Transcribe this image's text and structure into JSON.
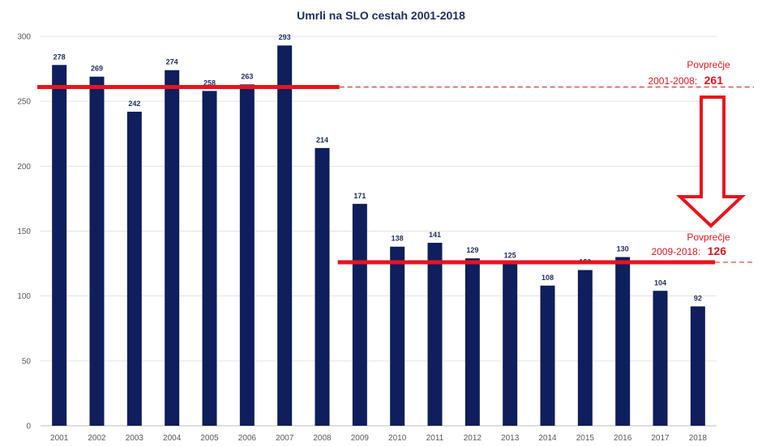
{
  "chart_data": {
    "type": "bar",
    "title": "Umrli na SLO cestah 2001-2018",
    "categories": [
      "2001",
      "2002",
      "2003",
      "2004",
      "2005",
      "2006",
      "2007",
      "2008",
      "2009",
      "2010",
      "2011",
      "2012",
      "2013",
      "2014",
      "2015",
      "2016",
      "2017",
      "2018"
    ],
    "values": [
      278,
      269,
      242,
      274,
      258,
      263,
      293,
      214,
      171,
      138,
      141,
      129,
      125,
      108,
      120,
      130,
      104,
      92
    ],
    "ylim": [
      0,
      300
    ],
    "yticks": [
      0,
      50,
      100,
      150,
      200,
      250,
      300
    ],
    "grid": true,
    "colors": {
      "bar": "#0f1e5c",
      "average": "#e8141c",
      "text": "#1f2d5c"
    },
    "averages": [
      {
        "label": "Povprečje",
        "period": "2001-2008:",
        "value": 261,
        "from": "2001",
        "to": "2008"
      },
      {
        "label": "Povprečje",
        "period": "2009-2018:",
        "value": 126,
        "from": "2009",
        "to": "2018"
      }
    ],
    "annotation": {
      "type": "arrow-down",
      "icon": "down-arrow-icon"
    }
  }
}
